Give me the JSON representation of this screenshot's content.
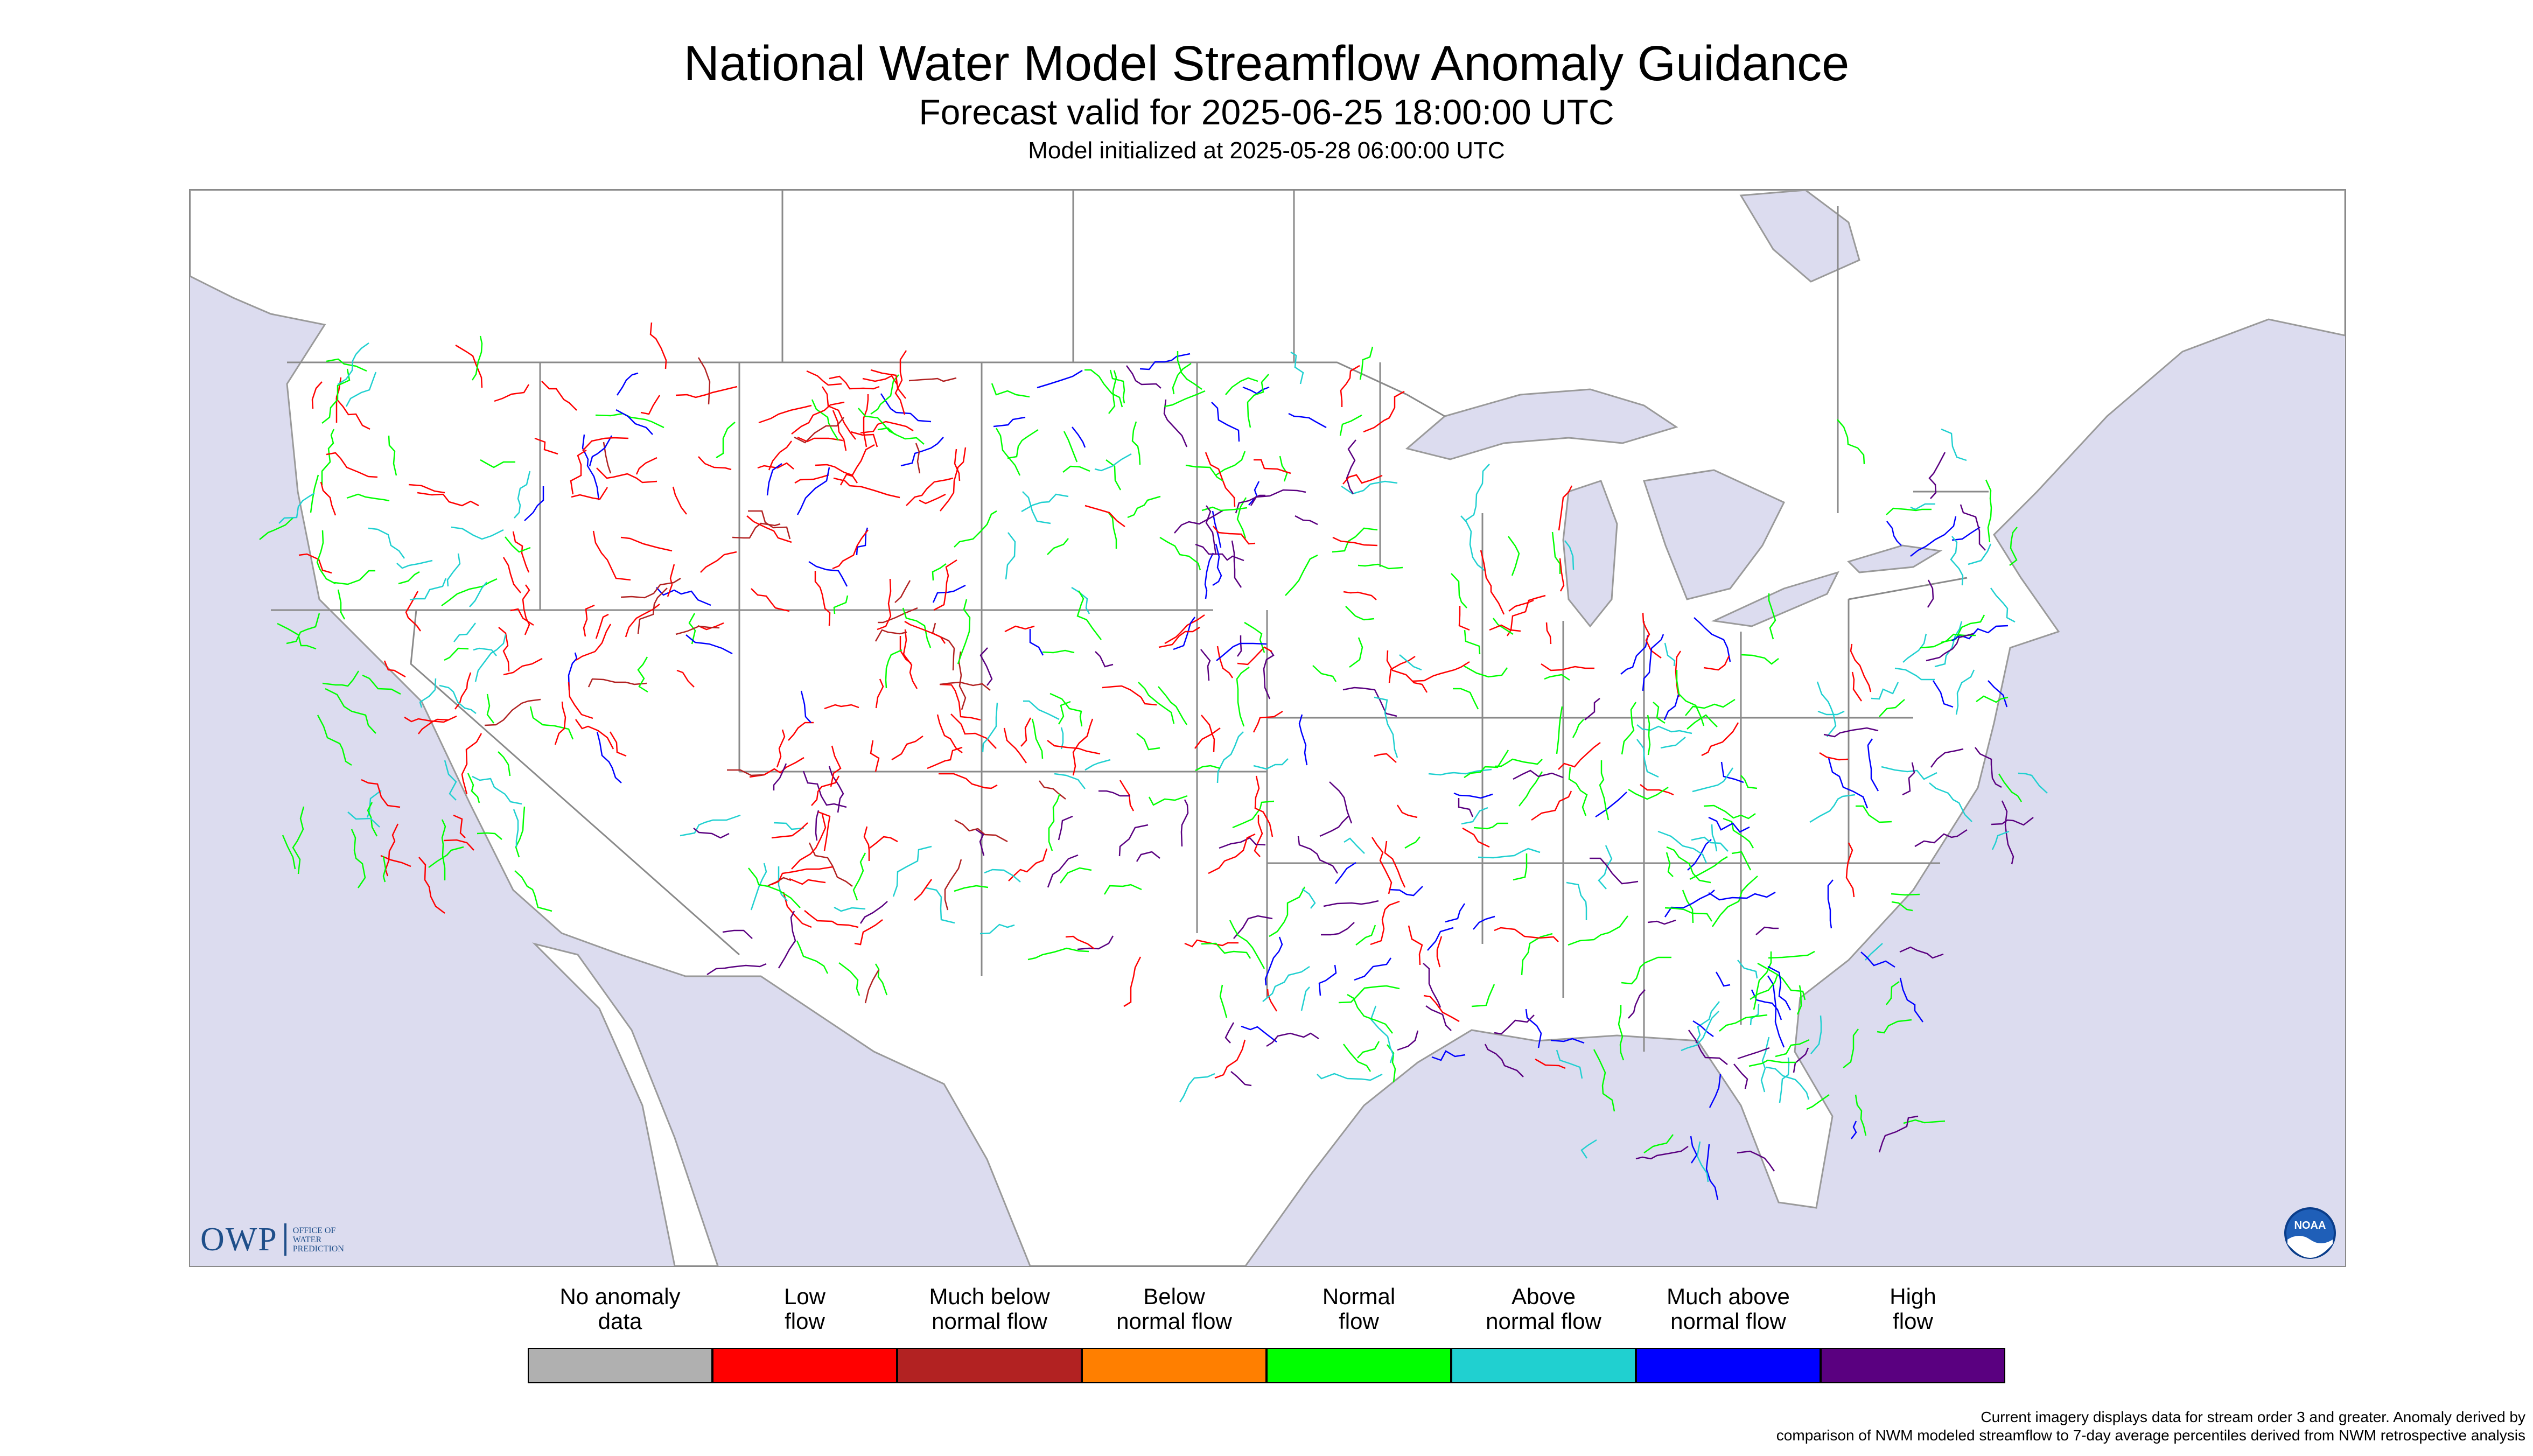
{
  "title": "National Water Model Streamflow Anomaly Guidance",
  "subtitle": "Forecast valid for 2025-06-25 18:00:00 UTC",
  "initialized": "Model initialized at 2025-05-28 06:00:00 UTC",
  "owp_logo": {
    "text": "OWP",
    "sub": [
      "OFFICE OF",
      "WATER",
      "PREDICTION"
    ]
  },
  "noaa_logo": {
    "text": "NOAA"
  },
  "legend": [
    {
      "label": "No anomaly data",
      "color": "#b0b0b0"
    },
    {
      "label": "Low flow",
      "color": "#ff0000"
    },
    {
      "label": "Much below normal flow",
      "color": "#b22222"
    },
    {
      "label": "Below normal flow",
      "color": "#ff7f00"
    },
    {
      "label": "Normal flow",
      "color": "#00ff00"
    },
    {
      "label": "Above normal flow",
      "color": "#20d0d0"
    },
    {
      "label": "Much above normal flow",
      "color": "#0000ff"
    },
    {
      "label": "High flow",
      "color": "#5a0080"
    }
  ],
  "legend_lines": [
    [
      "No anomaly",
      "data"
    ],
    [
      "Low",
      "flow"
    ],
    [
      "Much below",
      "normal flow"
    ],
    [
      "Below",
      "normal flow"
    ],
    [
      "Normal",
      "flow"
    ],
    [
      "Above",
      "normal flow"
    ],
    [
      "Much above",
      "normal flow"
    ],
    [
      "High",
      "flow"
    ]
  ],
  "footnote": {
    "line1": "Current imagery displays data for stream order 3 and greater. Anomaly derived by",
    "line2": "comparison of NWM modeled streamflow to 7-day average percentiles derived from NWM retrospective analysis"
  },
  "map_colors": {
    "ocean": "#dcdcef",
    "land": "#ffffff",
    "border": "#808080"
  }
}
